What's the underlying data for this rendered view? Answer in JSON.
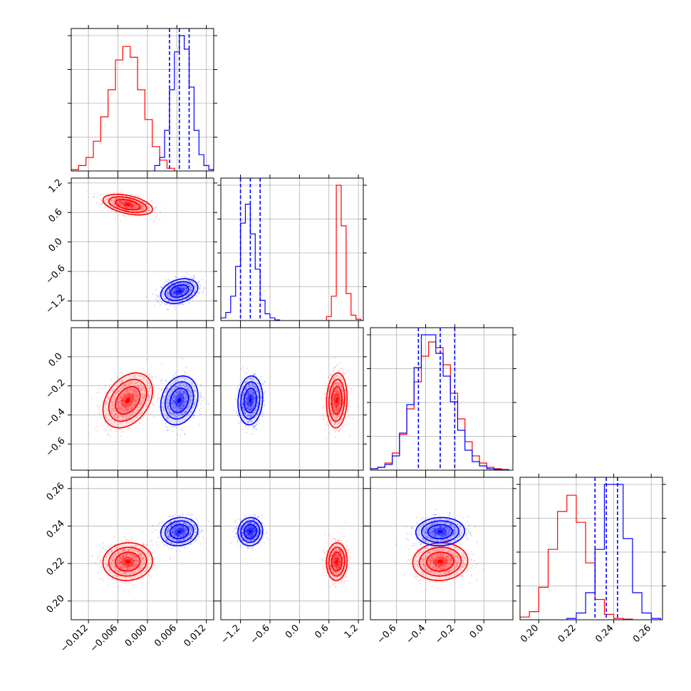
{
  "chart_data": {
    "type": "corner",
    "grid": true,
    "colors": {
      "series_a": "#ff0000",
      "series_b": "#0000ff"
    },
    "series": [
      {
        "color": "#ff0000",
        "mean": [
          -0.004,
          0.76,
          -0.3,
          0.221
        ]
      },
      {
        "color": "#0000ff",
        "mean": [
          0.0065,
          -1.0,
          -0.3,
          0.237
        ]
      }
    ],
    "quantiles_series_b": [
      [
        0.0045,
        0.0065,
        0.0085
      ],
      [
        -1.2,
        -1.0,
        -0.8
      ],
      [
        -0.45,
        -0.3,
        -0.2
      ],
      [
        0.23,
        0.236,
        0.242
      ]
    ],
    "axes": [
      {
        "range": [
          -0.0155,
          0.0135
        ],
        "ticks": [
          -0.012,
          -0.006,
          0.0,
          0.006,
          0.012
        ],
        "tick_labels": [
          "−0.012",
          "−0.006",
          "0.000",
          "0.006",
          "0.012"
        ]
      },
      {
        "range": [
          -1.6,
          1.3
        ],
        "ticks": [
          -1.2,
          -0.6,
          0.0,
          0.6,
          1.2
        ],
        "tick_labels": [
          "−1.2",
          "−0.6",
          "0.0",
          "0.6",
          "1.2"
        ]
      },
      {
        "range": [
          -0.78,
          0.2
        ],
        "ticks": [
          -0.6,
          -0.4,
          -0.2,
          0.0
        ],
        "tick_labels": [
          "−0.6",
          "−0.4",
          "−0.2",
          "0.0"
        ]
      },
      {
        "range": [
          0.19,
          0.266
        ],
        "ticks": [
          0.2,
          0.22,
          0.24,
          0.26
        ],
        "tick_labels": [
          "0.20",
          "0.22",
          "0.24",
          "0.26"
        ]
      }
    ],
    "histograms": [
      {
        "red": {
          "edges": [
            -0.0155,
            -0.014,
            -0.0125,
            -0.011,
            -0.0095,
            -0.008,
            -0.0065,
            -0.005,
            -0.0035,
            -0.002,
            -0.0005,
            0.001,
            0.0025,
            0.004,
            0.0055
          ],
          "counts": [
            0.01,
            0.04,
            0.1,
            0.22,
            0.4,
            0.6,
            0.82,
            0.92,
            0.84,
            0.6,
            0.38,
            0.18,
            0.08,
            0.02
          ]
        },
        "blue": {
          "edges": [
            0.0015,
            0.0025,
            0.0035,
            0.0045,
            0.0055,
            0.0065,
            0.0075,
            0.0085,
            0.0095,
            0.0105,
            0.0115,
            0.0125,
            0.0135
          ],
          "counts": [
            0.04,
            0.1,
            0.3,
            0.6,
            0.88,
            1.0,
            0.9,
            0.62,
            0.3,
            0.12,
            0.04,
            0.01
          ]
        }
      },
      {
        "red": {
          "edges": [
            0.55,
            0.65,
            0.75,
            0.85,
            0.95,
            1.05,
            1.15,
            1.25
          ],
          "counts": [
            0.03,
            0.18,
            1.0,
            0.7,
            0.2,
            0.04,
            0.01
          ]
        },
        "blue": {
          "edges": [
            -1.6,
            -1.5,
            -1.4,
            -1.3,
            -1.2,
            -1.1,
            -1.0,
            -0.9,
            -0.8,
            -0.7,
            -0.6,
            -0.5,
            -0.4
          ],
          "counts": [
            0.02,
            0.06,
            0.18,
            0.4,
            0.72,
            0.86,
            0.64,
            0.38,
            0.15,
            0.05,
            0.02,
            0.005
          ]
        }
      },
      {
        "red": {
          "edges": [
            -0.78,
            -0.73,
            -0.68,
            -0.63,
            -0.58,
            -0.53,
            -0.48,
            -0.43,
            -0.38,
            -0.33,
            -0.28,
            -0.23,
            -0.18,
            -0.13,
            -0.08,
            -0.03,
            0.02,
            0.07,
            0.12,
            0.17
          ],
          "counts": [
            0.01,
            0.02,
            0.05,
            0.12,
            0.25,
            0.43,
            0.62,
            0.8,
            0.9,
            0.86,
            0.74,
            0.54,
            0.36,
            0.2,
            0.1,
            0.05,
            0.02,
            0.01,
            0.005
          ]
        },
        "blue": {
          "edges": [
            -0.78,
            -0.73,
            -0.68,
            -0.63,
            -0.58,
            -0.53,
            -0.48,
            -0.43,
            -0.38,
            -0.33,
            -0.28,
            -0.23,
            -0.18,
            -0.13,
            -0.08,
            -0.03,
            0.02,
            0.07,
            0.12,
            0.17
          ],
          "counts": [
            0.01,
            0.02,
            0.04,
            0.1,
            0.26,
            0.46,
            0.72,
            0.95,
            0.95,
            0.82,
            0.66,
            0.48,
            0.28,
            0.14,
            0.06,
            0.03,
            0.01,
            0.005,
            0.002
          ]
        }
      },
      {
        "red": {
          "edges": [
            0.19,
            0.195,
            0.2,
            0.205,
            0.21,
            0.215,
            0.22,
            0.225,
            0.23,
            0.235,
            0.24,
            0.245,
            0.25
          ],
          "counts": [
            0.02,
            0.06,
            0.24,
            0.52,
            0.8,
            0.92,
            0.72,
            0.42,
            0.15,
            0.04,
            0.01,
            0.005
          ]
        },
        "blue": {
          "edges": [
            0.215,
            0.22,
            0.225,
            0.23,
            0.235,
            0.24,
            0.245,
            0.25,
            0.255,
            0.26,
            0.265
          ],
          "counts": [
            0.01,
            0.05,
            0.2,
            0.52,
            1.0,
            1.0,
            0.6,
            0.2,
            0.05,
            0.01
          ]
        }
      }
    ]
  }
}
